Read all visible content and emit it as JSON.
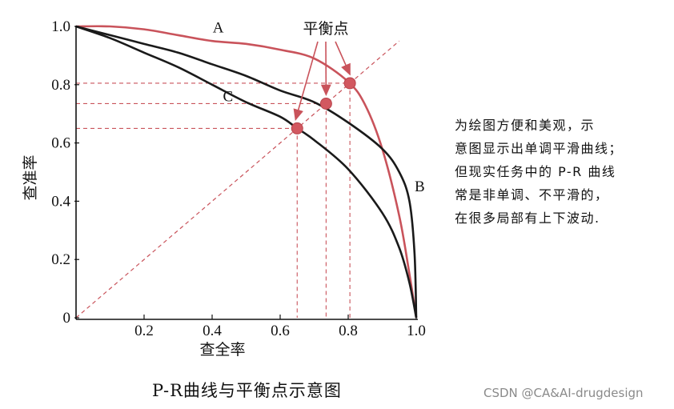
{
  "chart_data": {
    "type": "line",
    "title": "P-R曲线与平衡点示意图",
    "xlabel": "查全率",
    "ylabel": "查准率",
    "xlim": [
      0,
      1
    ],
    "ylim": [
      0,
      1
    ],
    "x_ticks": [
      "0.2",
      "0.4",
      "0.6",
      "0.8",
      "1.0"
    ],
    "y_ticks": [
      "0",
      "0.2",
      "0.4",
      "0.6",
      "0.8",
      "1.0"
    ],
    "grid": false,
    "series": [
      {
        "name": "A",
        "color": "#c9535b",
        "points": [
          [
            0,
            1.0
          ],
          [
            0.1,
            1.0
          ],
          [
            0.2,
            0.99
          ],
          [
            0.3,
            0.97
          ],
          [
            0.4,
            0.95
          ],
          [
            0.5,
            0.94
          ],
          [
            0.6,
            0.92
          ],
          [
            0.7,
            0.89
          ],
          [
            0.8,
            0.81
          ],
          [
            0.85,
            0.73
          ],
          [
            0.9,
            0.58
          ],
          [
            0.95,
            0.35
          ],
          [
            0.98,
            0.15
          ],
          [
            1.0,
            0.0
          ]
        ]
      },
      {
        "name": "B",
        "color": "#1a1a1a",
        "points": [
          [
            0,
            1.0
          ],
          [
            0.1,
            0.97
          ],
          [
            0.2,
            0.94
          ],
          [
            0.3,
            0.91
          ],
          [
            0.4,
            0.87
          ],
          [
            0.5,
            0.83
          ],
          [
            0.6,
            0.78
          ],
          [
            0.7,
            0.74
          ],
          [
            0.8,
            0.67
          ],
          [
            0.9,
            0.58
          ],
          [
            0.95,
            0.5
          ],
          [
            0.98,
            0.4
          ],
          [
            0.995,
            0.22
          ],
          [
            1.0,
            0.0
          ]
        ]
      },
      {
        "name": "C",
        "color": "#1a1a1a",
        "points": [
          [
            0,
            1.0
          ],
          [
            0.1,
            0.96
          ],
          [
            0.2,
            0.91
          ],
          [
            0.3,
            0.86
          ],
          [
            0.4,
            0.8
          ],
          [
            0.5,
            0.74
          ],
          [
            0.6,
            0.69
          ],
          [
            0.65,
            0.65
          ],
          [
            0.7,
            0.61
          ],
          [
            0.8,
            0.51
          ],
          [
            0.9,
            0.36
          ],
          [
            0.95,
            0.24
          ],
          [
            0.98,
            0.12
          ],
          [
            1.0,
            0.0
          ]
        ]
      }
    ],
    "diagonal": {
      "from": [
        0,
        0
      ],
      "to": [
        1,
        1
      ],
      "color": "#c9535b",
      "style": "dashed"
    },
    "break_even_points": [
      {
        "x": 0.65,
        "y": 0.65
      },
      {
        "x": 0.735,
        "y": 0.735
      },
      {
        "x": 0.805,
        "y": 0.805
      }
    ],
    "annotation": "平衡点",
    "curve_labels": [
      {
        "text": "A",
        "x": 0.43,
        "y": 0.99
      },
      {
        "text": "C",
        "x": 0.46,
        "y": 0.76
      },
      {
        "text": "B",
        "x": 1.0,
        "y": 0.45
      }
    ]
  },
  "note_lines": [
    "为绘图方便和美观，示",
    "意图显示出单调平滑曲线；",
    "但现实任务中的 P-R 曲线",
    "常是非单调、不平滑的，",
    "在很多局部有上下波动."
  ],
  "watermark": "CSDN @CA&AI-drugdesign"
}
